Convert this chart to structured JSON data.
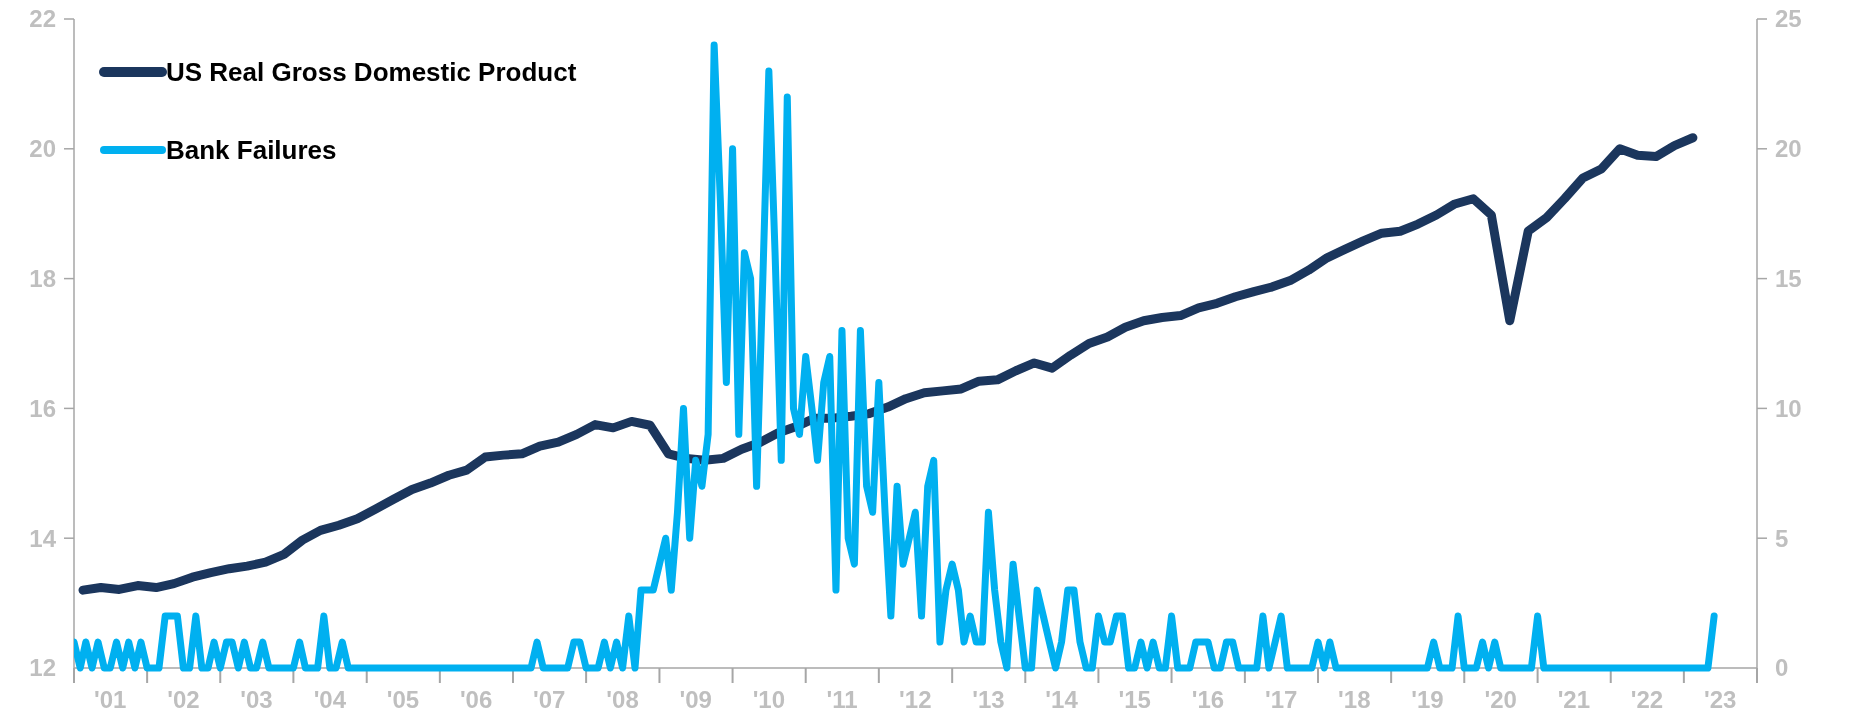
{
  "chart_data": {
    "type": "line",
    "legend": "top left",
    "xlim": [
      "2001-01",
      "2024-01"
    ],
    "xticks": [
      {
        "value": "2001-01",
        "label": null
      },
      {
        "value": "2001-07",
        "label": "'01"
      },
      {
        "value": "2002-01",
        "label": null
      },
      {
        "value": "2002-07",
        "label": "'02"
      },
      {
        "value": "2003-01",
        "label": null
      },
      {
        "value": "2003-07",
        "label": "'03"
      },
      {
        "value": "2004-01",
        "label": null
      },
      {
        "value": "2004-07",
        "label": "'04"
      },
      {
        "value": "2005-01",
        "label": null
      },
      {
        "value": "2005-07",
        "label": "'05"
      },
      {
        "value": "2006-01",
        "label": null
      },
      {
        "value": "2006-07",
        "label": "'06"
      },
      {
        "value": "2007-01",
        "label": null
      },
      {
        "value": "2007-07",
        "label": "'07"
      },
      {
        "value": "2008-01",
        "label": null
      },
      {
        "value": "2008-07",
        "label": "'08"
      },
      {
        "value": "2009-01",
        "label": null
      },
      {
        "value": "2009-07",
        "label": "'09"
      },
      {
        "value": "2010-01",
        "label": null
      },
      {
        "value": "2010-07",
        "label": "'10"
      },
      {
        "value": "2011-01",
        "label": null
      },
      {
        "value": "2011-07",
        "label": "'11"
      },
      {
        "value": "2012-01",
        "label": null
      },
      {
        "value": "2012-07",
        "label": "'12"
      },
      {
        "value": "2013-01",
        "label": null
      },
      {
        "value": "2013-07",
        "label": "'13"
      },
      {
        "value": "2014-01",
        "label": null
      },
      {
        "value": "2014-07",
        "label": "'14"
      },
      {
        "value": "2015-01",
        "label": null
      },
      {
        "value": "2015-07",
        "label": "'15"
      },
      {
        "value": "2016-01",
        "label": null
      },
      {
        "value": "2016-07",
        "label": "'16"
      },
      {
        "value": "2017-01",
        "label": null
      },
      {
        "value": "2017-07",
        "label": "'17"
      },
      {
        "value": "2018-01",
        "label": null
      },
      {
        "value": "2018-07",
        "label": "'18"
      },
      {
        "value": "2019-01",
        "label": null
      },
      {
        "value": "2019-07",
        "label": "'19"
      },
      {
        "value": "2020-01",
        "label": null
      },
      {
        "value": "2020-07",
        "label": "'20"
      },
      {
        "value": "2021-01",
        "label": null
      },
      {
        "value": "2021-07",
        "label": "'21"
      },
      {
        "value": "2022-01",
        "label": null
      },
      {
        "value": "2022-07",
        "label": "'22"
      },
      {
        "value": "2023-01",
        "label": null
      },
      {
        "value": "2023-07",
        "label": "'23"
      },
      {
        "value": "2024-01",
        "label": null
      }
    ],
    "ylim": [
      12,
      22
    ],
    "yticks": [
      12,
      14,
      16,
      18,
      20,
      22
    ],
    "y2lim": [
      0,
      25
    ],
    "y2ticks": [
      0,
      5,
      10,
      15,
      20,
      25
    ],
    "series": [
      {
        "name": "US Real Gross Domestic Product",
        "color": "#1b365d",
        "x": [
          "2001-02-15",
          "2001-05-15",
          "2001-08-15",
          "2001-11-15",
          "2002-02-15",
          "2002-05-15",
          "2002-08-15",
          "2002-11-15",
          "2003-02-15",
          "2003-05-15",
          "2003-08-15",
          "2003-11-15",
          "2004-02-15",
          "2004-05-15",
          "2004-08-15",
          "2004-11-15",
          "2005-02-15",
          "2005-05-15",
          "2005-08-15",
          "2005-11-15",
          "2006-02-15",
          "2006-05-15",
          "2006-08-15",
          "2006-11-15",
          "2007-02-15",
          "2007-05-15",
          "2007-08-15",
          "2007-11-15",
          "2008-02-15",
          "2008-05-15",
          "2008-08-15",
          "2008-11-15",
          "2009-02-15",
          "2009-05-15",
          "2009-08-15",
          "2009-11-15",
          "2010-02-15",
          "2010-05-15",
          "2010-08-15",
          "2010-11-15",
          "2011-02-15",
          "2011-05-15",
          "2011-08-15",
          "2011-11-15",
          "2012-02-15",
          "2012-05-15",
          "2012-08-15",
          "2012-11-15",
          "2013-02-15",
          "2013-05-15",
          "2013-08-15",
          "2013-11-15",
          "2014-02-15",
          "2014-05-15",
          "2014-08-15",
          "2014-11-15",
          "2015-02-15",
          "2015-05-15",
          "2015-08-15",
          "2015-11-15",
          "2016-02-15",
          "2016-05-15",
          "2016-08-15",
          "2016-11-15",
          "2017-02-15",
          "2017-05-15",
          "2017-08-15",
          "2017-11-15",
          "2018-02-15",
          "2018-05-15",
          "2018-08-15",
          "2018-11-15",
          "2019-02-15",
          "2019-05-15",
          "2019-08-15",
          "2019-11-15",
          "2020-02-15",
          "2020-05-15",
          "2020-08-15",
          "2020-11-15",
          "2021-02-15",
          "2021-05-15",
          "2021-08-15",
          "2021-11-15",
          "2022-02-15",
          "2022-05-15",
          "2022-08-15",
          "2022-11-15",
          "2023-02-15"
        ],
        "values": [
          13.2,
          13.24,
          13.21,
          13.27,
          13.24,
          13.3,
          13.4,
          13.47,
          13.53,
          13.57,
          13.63,
          13.75,
          13.97,
          14.12,
          14.2,
          14.3,
          14.45,
          14.6,
          14.75,
          14.85,
          14.97,
          15.05,
          15.25,
          15.28,
          15.3,
          15.42,
          15.48,
          15.6,
          15.75,
          15.7,
          15.8,
          15.74,
          15.3,
          15.23,
          15.2,
          15.23,
          15.37,
          15.47,
          15.62,
          15.72,
          15.85,
          15.85,
          15.88,
          15.92,
          16.02,
          16.15,
          16.24,
          16.27,
          16.3,
          16.42,
          16.44,
          16.58,
          16.7,
          16.62,
          16.82,
          17.0,
          17.1,
          17.25,
          17.35,
          17.4,
          17.43,
          17.55,
          17.62,
          17.72,
          17.8,
          17.87,
          17.97,
          18.13,
          18.32,
          18.45,
          18.58,
          18.7,
          18.73,
          18.84,
          18.98,
          19.15,
          19.23,
          18.98,
          17.35,
          18.73,
          18.94,
          19.23,
          19.55,
          19.69,
          20.0,
          19.9,
          19.88,
          20.05,
          20.17
        ]
      },
      {
        "name": "Bank Failures",
        "color": "#00b0f0",
        "axis": "y2",
        "x": [
          "2001-01",
          "2001-02",
          "2001-03",
          "2001-04",
          "2001-05",
          "2001-06",
          "2001-07",
          "2001-08",
          "2001-09",
          "2001-10",
          "2001-11",
          "2001-12",
          "2002-01",
          "2002-02",
          "2002-03",
          "2002-04",
          "2002-05",
          "2002-06",
          "2002-07",
          "2002-08",
          "2002-09",
          "2002-10",
          "2002-11",
          "2002-12",
          "2003-01",
          "2003-02",
          "2003-03",
          "2003-04",
          "2003-05",
          "2003-06",
          "2003-07",
          "2003-08",
          "2003-09",
          "2003-10",
          "2003-11",
          "2003-12",
          "2004-01",
          "2004-02",
          "2004-03",
          "2004-04",
          "2004-05",
          "2004-06",
          "2004-07",
          "2004-08",
          "2004-09",
          "2004-10",
          "2004-11",
          "2004-12",
          "2005-01",
          "2005-02",
          "2005-03",
          "2005-04",
          "2005-05",
          "2005-06",
          "2005-07",
          "2005-08",
          "2005-09",
          "2005-10",
          "2005-11",
          "2005-12",
          "2006-01",
          "2006-02",
          "2006-03",
          "2006-04",
          "2006-05",
          "2006-06",
          "2006-07",
          "2006-08",
          "2006-09",
          "2006-10",
          "2006-11",
          "2006-12",
          "2007-01",
          "2007-02",
          "2007-03",
          "2007-04",
          "2007-05",
          "2007-06",
          "2007-07",
          "2007-08",
          "2007-09",
          "2007-10",
          "2007-11",
          "2007-12",
          "2008-01",
          "2008-02",
          "2008-03",
          "2008-04",
          "2008-05",
          "2008-06",
          "2008-07",
          "2008-08",
          "2008-09",
          "2008-10",
          "2008-11",
          "2008-12",
          "2009-01",
          "2009-02",
          "2009-03",
          "2009-04",
          "2009-05",
          "2009-06",
          "2009-07",
          "2009-08",
          "2009-09",
          "2009-10",
          "2009-11",
          "2009-12",
          "2010-01",
          "2010-02",
          "2010-03",
          "2010-04",
          "2010-05",
          "2010-06",
          "2010-07",
          "2010-08",
          "2010-09",
          "2010-10",
          "2010-11",
          "2010-12",
          "2011-01",
          "2011-02",
          "2011-03",
          "2011-04",
          "2011-05",
          "2011-06",
          "2011-07",
          "2011-08",
          "2011-09",
          "2011-10",
          "2011-11",
          "2011-12",
          "2012-01",
          "2012-02",
          "2012-03",
          "2012-04",
          "2012-05",
          "2012-06",
          "2012-07",
          "2012-08",
          "2012-09",
          "2012-10",
          "2012-11",
          "2012-12",
          "2013-01",
          "2013-02",
          "2013-03",
          "2013-04",
          "2013-05",
          "2013-06",
          "2013-07",
          "2013-08",
          "2013-09",
          "2013-10",
          "2013-11",
          "2013-12",
          "2014-01",
          "2014-02",
          "2014-03",
          "2014-04",
          "2014-05",
          "2014-06",
          "2014-07",
          "2014-08",
          "2014-09",
          "2014-10",
          "2014-11",
          "2014-12",
          "2015-01",
          "2015-02",
          "2015-03",
          "2015-04",
          "2015-05",
          "2015-06",
          "2015-07",
          "2015-08",
          "2015-09",
          "2015-10",
          "2015-11",
          "2015-12",
          "2016-01",
          "2016-02",
          "2016-03",
          "2016-04",
          "2016-05",
          "2016-06",
          "2016-07",
          "2016-08",
          "2016-09",
          "2016-10",
          "2016-11",
          "2016-12",
          "2017-01",
          "2017-02",
          "2017-03",
          "2017-04",
          "2017-05",
          "2017-06",
          "2017-07",
          "2017-08",
          "2017-09",
          "2017-10",
          "2017-11",
          "2017-12",
          "2018-01",
          "2018-02",
          "2018-03",
          "2018-04",
          "2018-05",
          "2018-06",
          "2018-07",
          "2018-08",
          "2018-09",
          "2018-10",
          "2018-11",
          "2018-12",
          "2019-01",
          "2019-02",
          "2019-03",
          "2019-04",
          "2019-05",
          "2019-06",
          "2019-07",
          "2019-08",
          "2019-09",
          "2019-10",
          "2019-11",
          "2019-12",
          "2020-01",
          "2020-02",
          "2020-03",
          "2020-04",
          "2020-05",
          "2020-06",
          "2020-07",
          "2020-08",
          "2020-09",
          "2020-10",
          "2020-11",
          "2020-12",
          "2021-01",
          "2021-02",
          "2021-03",
          "2021-04",
          "2021-05",
          "2021-06",
          "2021-07",
          "2021-08",
          "2021-09",
          "2021-10",
          "2021-11",
          "2021-12",
          "2022-01",
          "2022-02",
          "2022-03",
          "2022-04",
          "2022-05",
          "2022-06",
          "2022-07",
          "2022-08",
          "2022-09",
          "2022-10",
          "2022-11",
          "2022-12",
          "2023-01",
          "2023-02",
          "2023-03",
          "2023-04",
          "2023-05",
          "2023-06"
        ],
        "values": [
          1,
          0,
          1,
          0,
          1,
          0,
          0,
          1,
          0,
          1,
          0,
          1,
          0,
          0,
          0,
          2,
          2,
          2,
          0,
          0,
          2,
          0,
          0,
          1,
          0,
          1,
          1,
          0,
          1,
          0,
          0,
          1,
          0,
          0,
          0,
          0,
          0,
          1,
          0,
          0,
          0,
          2,
          0,
          0,
          1,
          0,
          0,
          0,
          0,
          0,
          0,
          0,
          0,
          0,
          0,
          0,
          0,
          0,
          0,
          0,
          0,
          0,
          0,
          0,
          0,
          0,
          0,
          0,
          0,
          0,
          0,
          0,
          0,
          0,
          0,
          0,
          1,
          0,
          0,
          0,
          0,
          0,
          1,
          1,
          0,
          0,
          0,
          1,
          0,
          1,
          0,
          2,
          0,
          3,
          3,
          3,
          4,
          5,
          3,
          6,
          10,
          5,
          8,
          7,
          9,
          24,
          18,
          11,
          20,
          9,
          16,
          15,
          7,
          15,
          23,
          16,
          8,
          22,
          10,
          9,
          12,
          10,
          8,
          11,
          12,
          3,
          13,
          5,
          4,
          13,
          7,
          6,
          11,
          6,
          2,
          7,
          4,
          5,
          6,
          2,
          7,
          8,
          1,
          3,
          4,
          3,
          1,
          2,
          1,
          1,
          6,
          3,
          1,
          0,
          4,
          2,
          0,
          0,
          3,
          2,
          1,
          0,
          1,
          3,
          3,
          1,
          0,
          0,
          2,
          1,
          1,
          2,
          2,
          0,
          0,
          1,
          0,
          1,
          0,
          0,
          2,
          0,
          0,
          0,
          1,
          1,
          1,
          0,
          0,
          1,
          1,
          0,
          0,
          0,
          0,
          2,
          0,
          1,
          2,
          0,
          0,
          0,
          0,
          0,
          1,
          0,
          1,
          0,
          0,
          0,
          0,
          0,
          0,
          0,
          0,
          0,
          0,
          0,
          0,
          0,
          0,
          0,
          0,
          1,
          0,
          0,
          0,
          2,
          0,
          0,
          0,
          1,
          0,
          1,
          0,
          0,
          0,
          0,
          0,
          0,
          2,
          0,
          0,
          0,
          0,
          0,
          0,
          0,
          0,
          0,
          0,
          0,
          0,
          0,
          0,
          0,
          0,
          0,
          0,
          0,
          0,
          0,
          0,
          0,
          0,
          0,
          0,
          0,
          0,
          2
        ]
      }
    ]
  }
}
